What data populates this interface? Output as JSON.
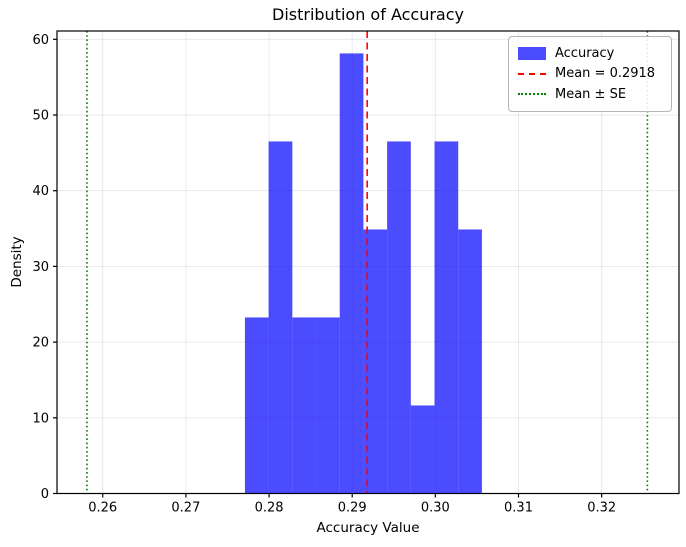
{
  "chart_data": {
    "type": "bar",
    "subtype": "density-histogram",
    "title": "Distribution of Accuracy",
    "xlabel": "Accuracy Value",
    "ylabel": "Density",
    "xlim": [
      0.2545,
      0.3293
    ],
    "ylim": [
      0,
      61.1
    ],
    "xticks": [
      {
        "value": 0.26,
        "label": "0.26"
      },
      {
        "value": 0.27,
        "label": "0.27"
      },
      {
        "value": 0.28,
        "label": "0.28"
      },
      {
        "value": 0.29,
        "label": "0.29"
      },
      {
        "value": 0.3,
        "label": "0.30"
      },
      {
        "value": 0.31,
        "label": "0.31"
      },
      {
        "value": 0.32,
        "label": "0.32"
      }
    ],
    "yticks": [
      {
        "value": 0,
        "label": "0"
      },
      {
        "value": 10,
        "label": "10"
      },
      {
        "value": 20,
        "label": "20"
      },
      {
        "value": 30,
        "label": "30"
      },
      {
        "value": 40,
        "label": "40"
      },
      {
        "value": 50,
        "label": "50"
      },
      {
        "value": 60,
        "label": "60"
      }
    ],
    "bin_edges": [
      0.2771,
      0.27995,
      0.2828,
      0.28565,
      0.2885,
      0.29135,
      0.2942,
      0.29705,
      0.2999,
      0.30275,
      0.3056
    ],
    "densities": [
      23.26,
      46.51,
      23.26,
      23.26,
      58.14,
      34.88,
      46.51,
      11.63,
      46.51,
      34.88
    ],
    "bar_color": "#0000ff",
    "bar_alpha": 0.7,
    "mean_line": {
      "value": 0.2918,
      "color": "#ff0000",
      "style": "dashed"
    },
    "se_lines": {
      "values": [
        0.2581,
        0.3255
      ],
      "color": "#008000",
      "style": "dotted"
    },
    "grid": true,
    "grid_color": "#b0b0b0",
    "grid_alpha": 0.3,
    "legend_position": "upper right",
    "legend": [
      {
        "label": "Accuracy",
        "swatch": "patch",
        "color": "#0000ff",
        "alpha": 0.7
      },
      {
        "label": "Mean = 0.2918",
        "swatch": "dashed-line",
        "color": "#ff0000"
      },
      {
        "label": "Mean ± SE",
        "swatch": "dotted-line",
        "color": "#008000"
      }
    ]
  }
}
